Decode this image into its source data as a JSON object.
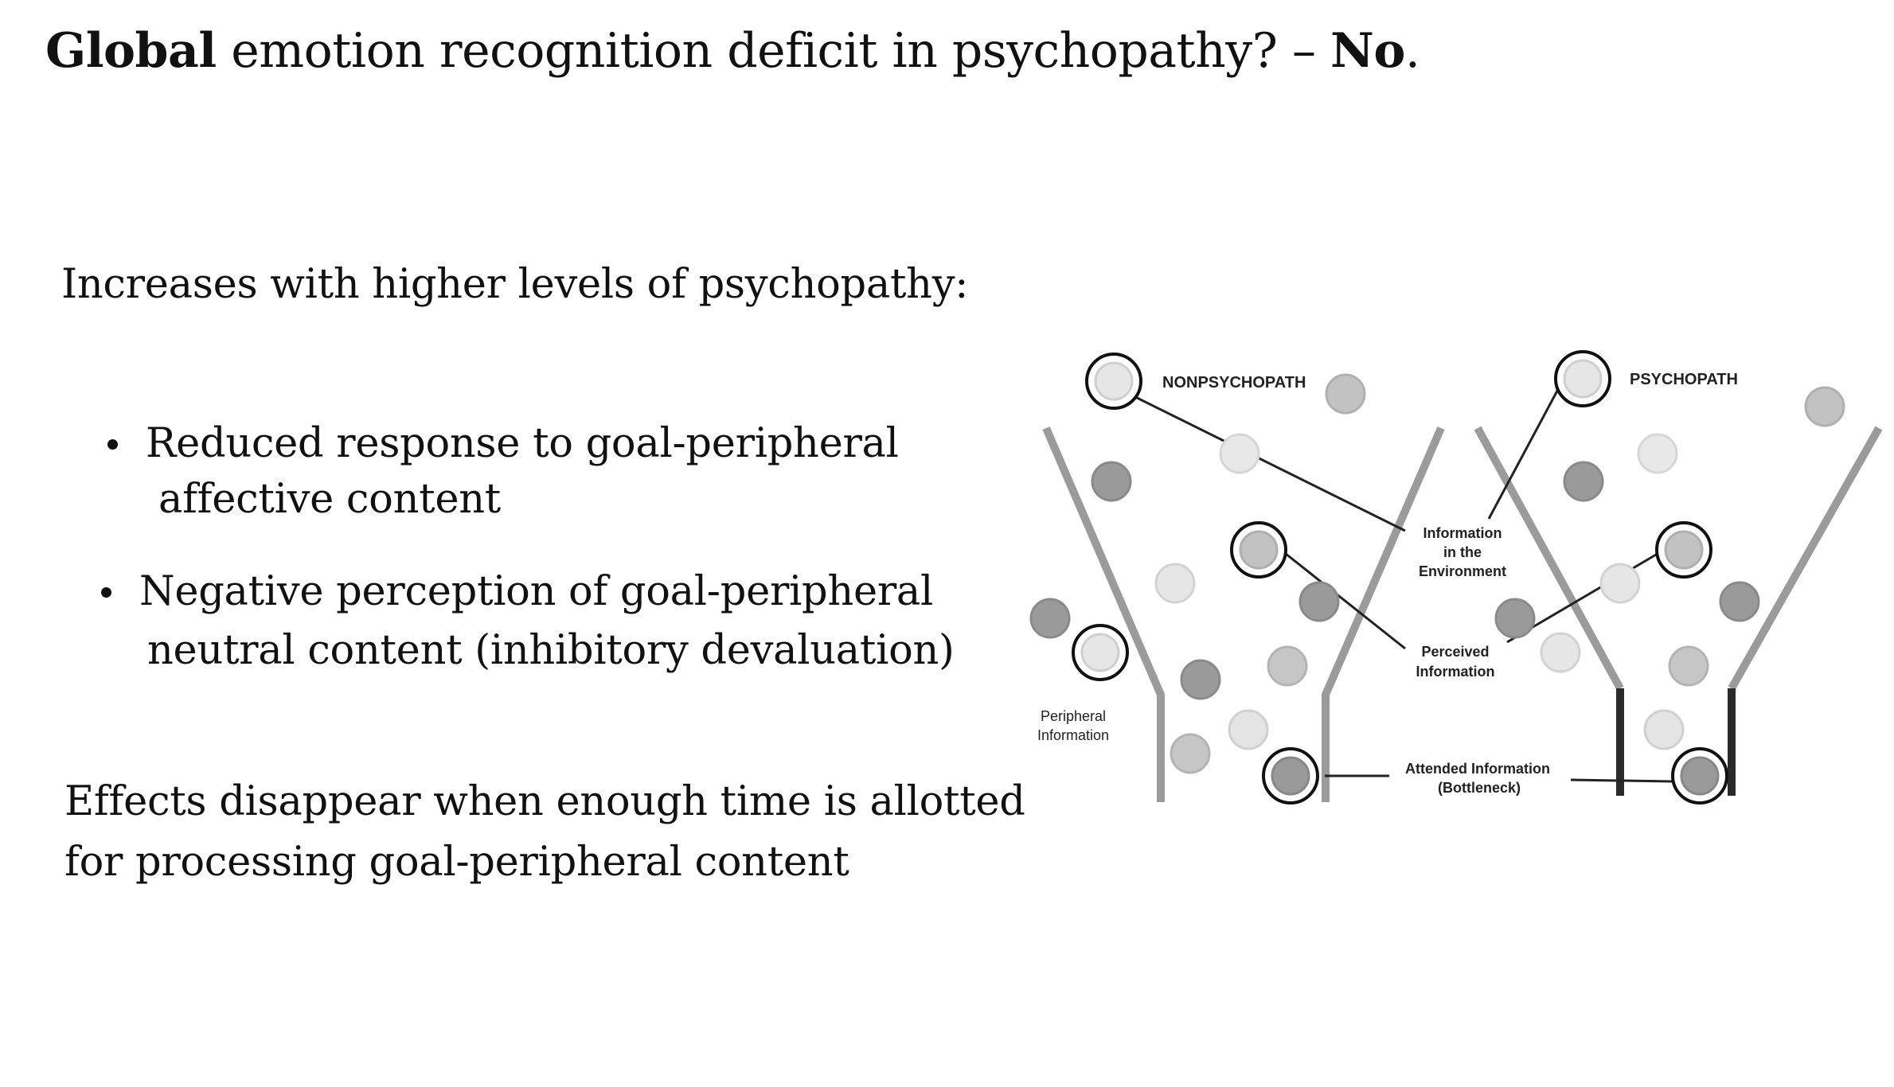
{
  "slide": {
    "title_bold_1": "Global",
    "title_middle": " emotion recognition deficit in psychopathy? – ",
    "title_bold_2": "No",
    "title_end": ".",
    "intro": "Increases with higher levels of psychopathy:",
    "bullets": [
      {
        "line1": "Reduced response to goal-peripheral",
        "line2": "affective content"
      },
      {
        "line1": "Negative perception of goal-peripheral",
        "line2": "neutral content (inhibitory devaluation)"
      }
    ],
    "conclusion": {
      "line1": "Effects disappear when enough time is allotted",
      "line2": "for processing goal-peripheral content"
    }
  },
  "diagram": {
    "label_nonpsychopath": "NONPSYCHOPATH",
    "label_psychopath": "PSYCHOPATH",
    "label_env_1": "Information",
    "label_env_2": "in the",
    "label_env_3": "Environment",
    "label_perceived_1": "Perceived",
    "label_perceived_2": "Information",
    "label_attended_1": "Attended Information",
    "label_attended_2": "(Bottleneck)",
    "label_peripheral_1": "Peripheral",
    "label_peripheral_2": "Information",
    "colors": {
      "light_dot": "#e4e4e4",
      "mid_dot": "#c2c2c2",
      "dark_dot": "#9a9a9a",
      "funnel_gray": "#9b9b9b",
      "funnel_black": "#2a2a2a",
      "line": "#222222"
    }
  }
}
